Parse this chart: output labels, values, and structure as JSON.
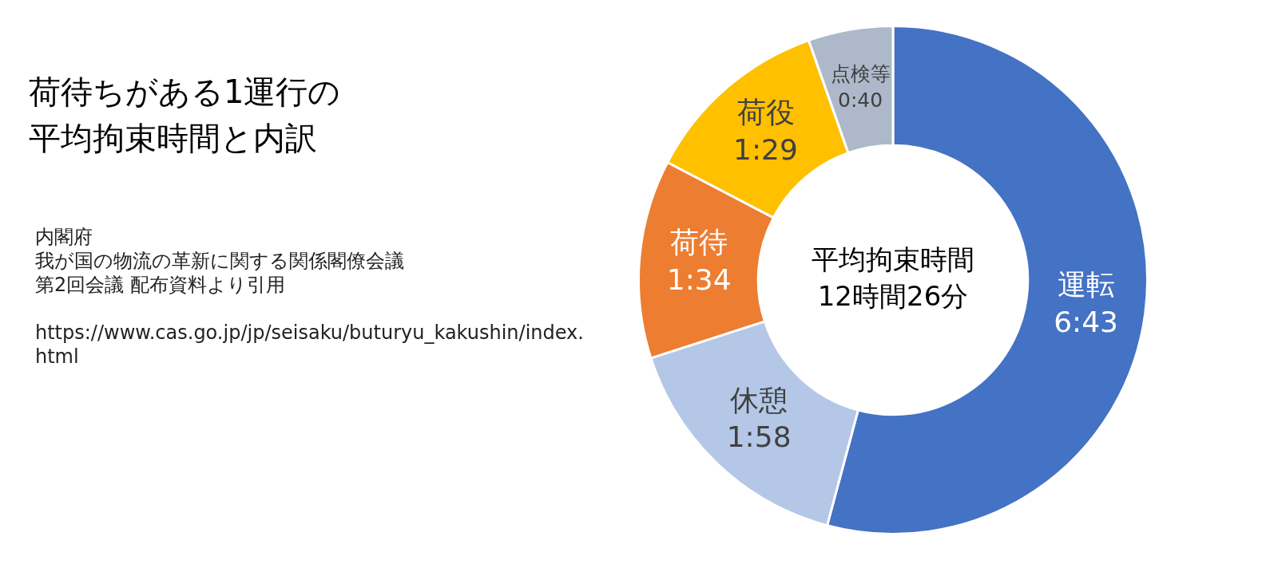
{
  "chart_data": {
    "type": "donut",
    "title": "荷待ちがある1運行の平均拘束時間と内訳",
    "categories": [
      "運転",
      "休憩",
      "荷待",
      "荷役",
      "点検等"
    ],
    "values": [
      403,
      118,
      94,
      89,
      40
    ],
    "value_labels": [
      "6:43",
      "1:58",
      "1:34",
      "1:29",
      "0:40"
    ],
    "colors": [
      "#4472c4",
      "#b4c7e7",
      "#ed7d31",
      "#ffc000",
      "#adb9ca"
    ],
    "annotations": [
      "平均拘束時間12時間26分",
      "内閣府",
      "我が国の物流の革新に関する関係閣僚会議",
      "第2回会議 配布資料より引用",
      "https://www.cas.go.jp/jp/seisaku/buturyu_kakushin/index.html"
    ]
  }
}
